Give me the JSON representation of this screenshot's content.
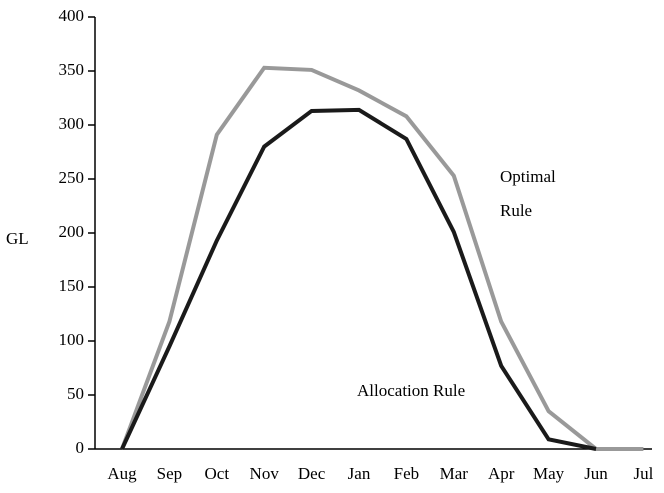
{
  "chart_data": {
    "type": "line",
    "y_label": "GL",
    "categories": [
      "Aug",
      "Sep",
      "Oct",
      "Nov",
      "Dec",
      "Jan",
      "Feb",
      "Mar",
      "Apr",
      "May",
      "Jun",
      "Jul"
    ],
    "series": [
      {
        "name": "Optimal Rule",
        "color": "#999999",
        "values": [
          0,
          118,
          291,
          353,
          351,
          332,
          308,
          253,
          118,
          35,
          0,
          0
        ]
      },
      {
        "name": "Allocation Rule",
        "color": "#1a1a1a",
        "values": [
          0,
          95,
          193,
          280,
          313,
          314,
          287,
          201,
          77,
          9,
          0,
          null
        ]
      }
    ],
    "annotations": [
      "Optimal",
      "Rule",
      "Allocation Rule"
    ],
    "ylim": [
      0,
      400
    ],
    "yticks": [
      0,
      50,
      100,
      150,
      200,
      250,
      300,
      350,
      400
    ]
  }
}
